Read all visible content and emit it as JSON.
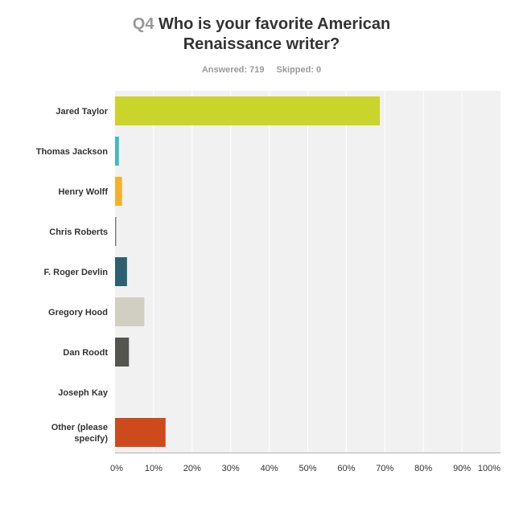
{
  "header": {
    "question_number": "Q4",
    "title_line1": "Who is your favorite American",
    "title_line2": "Renaissance writer?",
    "answered": "Answered: 719",
    "skipped": "Skipped: 0"
  },
  "chart_data": {
    "type": "bar",
    "orientation": "horizontal",
    "title": "Who is your favorite American Renaissance writer?",
    "categories": [
      "Jared Taylor",
      "Thomas Jackson",
      "Henry Wolff",
      "Chris Roberts",
      "F. Roger Devlin",
      "Gregory Hood",
      "Dan Roodt",
      "Joseph Kay",
      "Other (please specify)"
    ],
    "category_lines": [
      [
        "Jared Taylor"
      ],
      [
        "Thomas Jackson"
      ],
      [
        "Henry Wolff"
      ],
      [
        "Chris Roberts"
      ],
      [
        "F. Roger Devlin"
      ],
      [
        "Gregory Hood"
      ],
      [
        "Dan Roodt"
      ],
      [
        "Joseph Kay"
      ],
      [
        "Other (please",
        "specify)"
      ]
    ],
    "values": [
      68.7,
      1.0,
      1.8,
      0.3,
      3.1,
      7.6,
      3.6,
      0.0,
      13.1
    ],
    "colors": [
      "#cad52b",
      "#40bcc3",
      "#f6b12a",
      "#7a7a7a",
      "#2d6071",
      "#d0cfc1",
      "#555550",
      "#999999",
      "#cc4a1b"
    ],
    "xlim": [
      0,
      100
    ],
    "ticks": [
      "0%",
      "10%",
      "20%",
      "30%",
      "40%",
      "50%",
      "60%",
      "70%",
      "80%",
      "90%",
      "100%"
    ],
    "grid": true,
    "legend": "none"
  }
}
